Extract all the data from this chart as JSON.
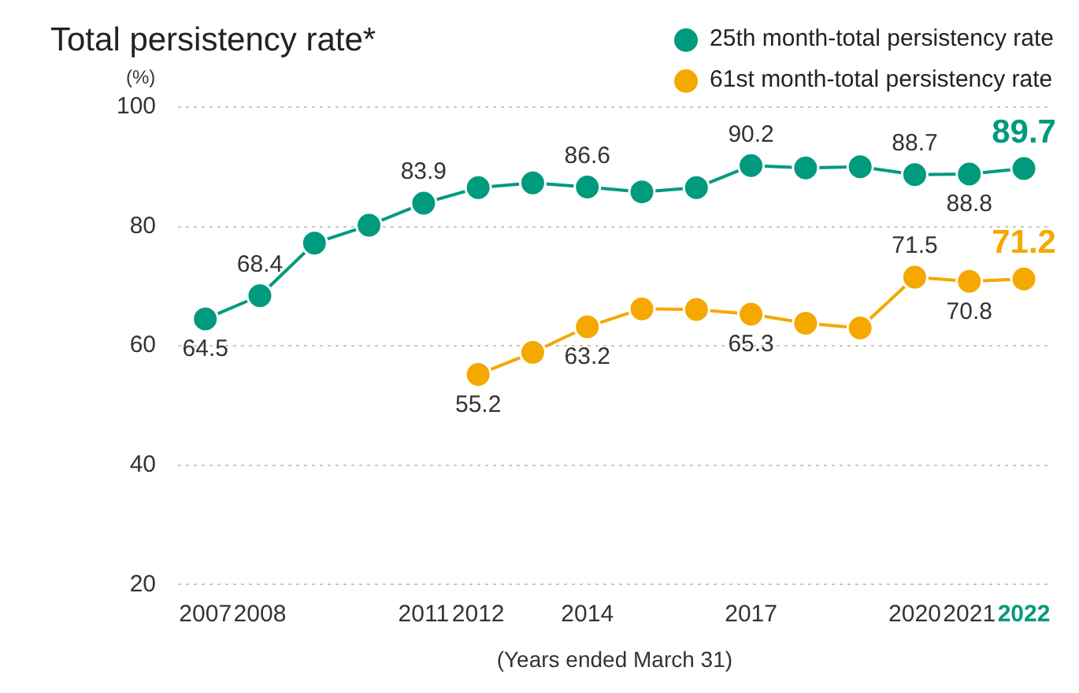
{
  "chart_data": {
    "type": "line",
    "title": "Total persistency rate*",
    "ylabel": "(%)",
    "xlabel": "(Years ended March 31)",
    "categories": [
      "2007",
      "2008",
      null,
      null,
      "2011",
      "2012",
      null,
      "2014",
      null,
      null,
      "2017",
      null,
      null,
      "2020",
      "2021",
      "2022"
    ],
    "series": [
      {
        "name": "25th month-total persistency rate",
        "color": "#009a7e",
        "values": [
          64.5,
          68.4,
          77.2,
          80.2,
          83.9,
          86.5,
          87.3,
          86.6,
          85.8,
          86.5,
          90.2,
          89.8,
          90.0,
          88.7,
          88.8,
          89.7
        ],
        "value_labels": [
          "64.5",
          "68.4",
          null,
          null,
          "83.9",
          null,
          null,
          "86.6",
          null,
          null,
          "90.2",
          null,
          null,
          "88.7",
          "88.8",
          "89.7"
        ]
      },
      {
        "name": "61st month-total persistency rate",
        "color": "#f5a800",
        "values": [
          null,
          null,
          null,
          null,
          null,
          55.2,
          58.9,
          63.2,
          66.2,
          66.1,
          65.3,
          63.8,
          63.0,
          71.5,
          70.8,
          71.2
        ],
        "value_labels": [
          null,
          null,
          null,
          null,
          null,
          "55.2",
          null,
          "63.2",
          null,
          null,
          "65.3",
          null,
          null,
          "71.5",
          "70.8",
          "71.2"
        ]
      }
    ],
    "ylim": [
      20,
      100
    ],
    "yticks": [
      20,
      40,
      60,
      80,
      100
    ],
    "grid": "y",
    "legend": "top right",
    "marker": "circle"
  }
}
